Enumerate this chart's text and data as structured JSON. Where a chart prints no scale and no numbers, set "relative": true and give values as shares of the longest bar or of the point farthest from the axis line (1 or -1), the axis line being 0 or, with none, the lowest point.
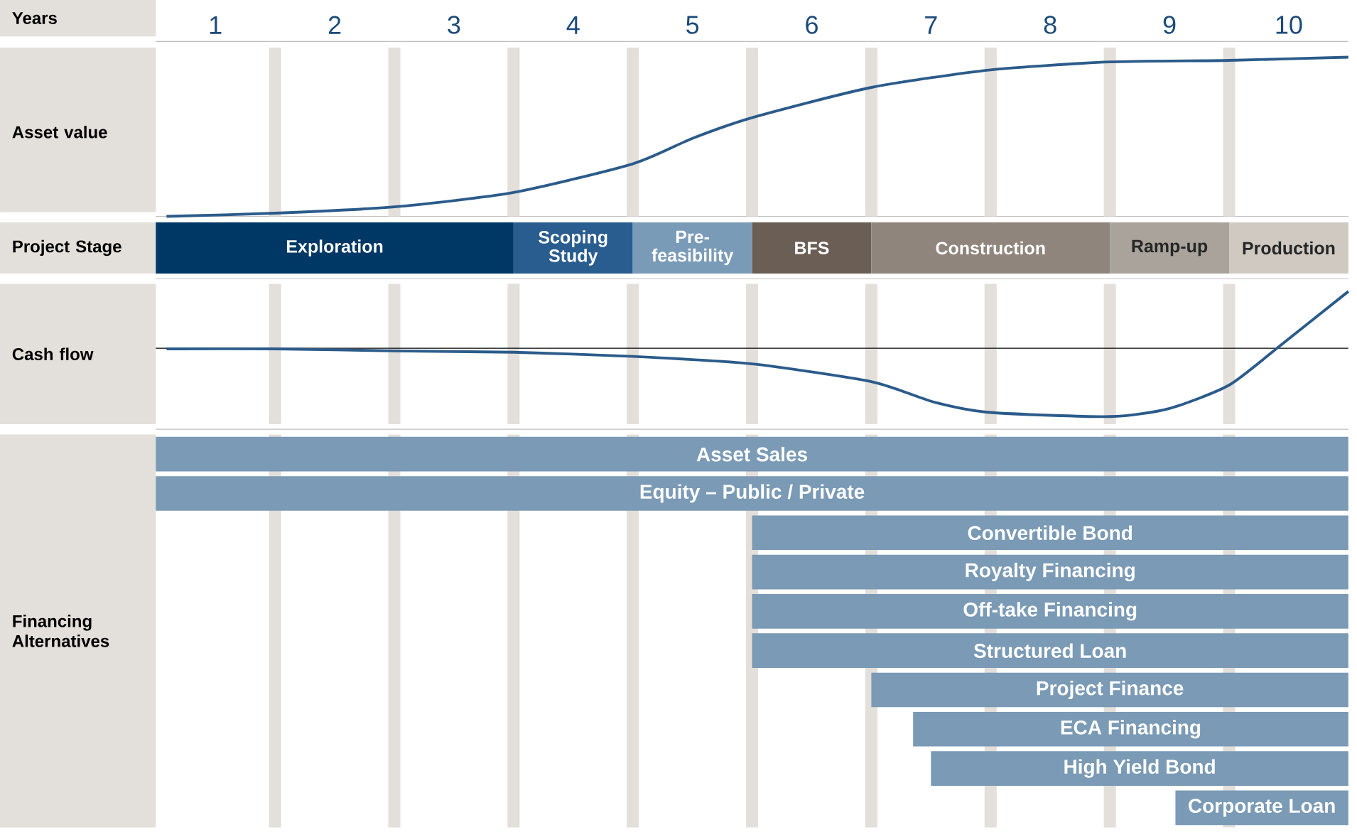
{
  "chart_data": [
    {
      "type": "line",
      "relative": true,
      "xlabel": "Years",
      "ylabel": "Asset value",
      "color": "#2b5b8a",
      "grid": "x",
      "xlim": [
        0,
        10
      ],
      "xticks": [
        {
          "value": 0.5,
          "label": "1"
        },
        {
          "value": 1.5,
          "label": "2"
        },
        {
          "value": 2.5,
          "label": "3"
        },
        {
          "value": 3.5,
          "label": "4"
        },
        {
          "value": 4.5,
          "label": "5"
        },
        {
          "value": 5.5,
          "label": "6"
        },
        {
          "value": 6.5,
          "label": "7"
        },
        {
          "value": 7.5,
          "label": "8"
        },
        {
          "value": 8.5,
          "label": "9"
        },
        {
          "value": 9.5,
          "label": "10"
        },
        {
          "value": 1,
          "label": null
        },
        {
          "value": 2,
          "label": null
        },
        {
          "value": 3,
          "label": null
        },
        {
          "value": 4,
          "label": null
        },
        {
          "value": 5,
          "label": null
        },
        {
          "value": 6,
          "label": null
        },
        {
          "value": 7,
          "label": null
        },
        {
          "value": 8,
          "label": null
        },
        {
          "value": 9,
          "label": null
        }
      ],
      "x": [
        0.09,
        1,
        2,
        3,
        4,
        4.5,
        5,
        6,
        7,
        8,
        9,
        10
      ],
      "values": [
        0,
        0.02,
        0.06,
        0.15,
        0.33,
        0.49,
        0.62,
        0.81,
        0.92,
        0.97,
        0.98,
        1.0
      ]
    },
    {
      "type": "bar",
      "orientation": "horizontal",
      "stacked": true,
      "ylabel": "Project Stage",
      "categories": [
        null
      ],
      "tick_labels": false,
      "xlim": [
        0,
        10
      ],
      "series": [
        {
          "name": "Exploration",
          "color": "#003865",
          "values": [
            3
          ]
        },
        {
          "name": "Scoping Study",
          "color": "#2a5d8f",
          "values": [
            1
          ]
        },
        {
          "name": "Pre-feasibility",
          "color": "#7a9bb8",
          "values": [
            1
          ]
        },
        {
          "name": "BFS",
          "color": "#6b5e55",
          "values": [
            1
          ]
        },
        {
          "name": "Construction",
          "color": "#8f857c",
          "values": [
            2
          ]
        },
        {
          "name": "Ramp-up",
          "color": "#aaa39c",
          "values": [
            1
          ]
        },
        {
          "name": "Production",
          "color": "#cfc9c2",
          "values": [
            1
          ]
        }
      ]
    },
    {
      "type": "line",
      "relative": true,
      "ylabel": "Cash flow",
      "color": "#2b5b8a",
      "grid": "x",
      "tick_labels": false,
      "xlim": [
        0,
        10
      ],
      "xticks": [
        {
          "value": 1,
          "label": null
        },
        {
          "value": 2,
          "label": null
        },
        {
          "value": 3,
          "label": null
        },
        {
          "value": 4,
          "label": null
        },
        {
          "value": 5,
          "label": null
        },
        {
          "value": 6,
          "label": null
        },
        {
          "value": 7,
          "label": null
        },
        {
          "value": 8,
          "label": null
        },
        {
          "value": 9,
          "label": null
        }
      ],
      "x": [
        0.09,
        1,
        2,
        3,
        4,
        5,
        6,
        6.53,
        7,
        8,
        8.5,
        9,
        9.43,
        10
      ],
      "values": [
        -0.01,
        -0.01,
        -0.04,
        -0.06,
        -0.12,
        -0.23,
        -0.49,
        -0.79,
        -0.94,
        -1.0,
        -0.88,
        -0.54,
        0.04,
        0.83
      ]
    },
    {
      "type": "bar",
      "orientation": "horizontal",
      "ylabel": "Financing Alternatives",
      "color": "#7a9ab5",
      "grid": "x",
      "tick_labels": "y",
      "xlim": [
        0,
        10
      ],
      "xticks": [
        {
          "value": 1,
          "label": null
        },
        {
          "value": 2,
          "label": null
        },
        {
          "value": 3,
          "label": null
        },
        {
          "value": 4,
          "label": null
        },
        {
          "value": 5,
          "label": null
        },
        {
          "value": 6,
          "label": null
        },
        {
          "value": 7,
          "label": null
        },
        {
          "value": 8,
          "label": null
        },
        {
          "value": 9,
          "label": null
        }
      ],
      "categories": [
        "Asset Sales",
        "Equity – Public / Private",
        "Convertible Bond",
        "Royalty Financing",
        "Off-take Financing",
        "Structured Loan",
        "Project Finance",
        "ECA Financing",
        "High Yield Bond",
        "Corporate Loan"
      ],
      "base": [
        0,
        0,
        5,
        5,
        5,
        5,
        6,
        6.35,
        6.5,
        8.55
      ],
      "values": [
        10,
        10,
        5,
        5,
        5,
        5,
        4,
        3.65,
        3.5,
        1.45
      ]
    }
  ]
}
